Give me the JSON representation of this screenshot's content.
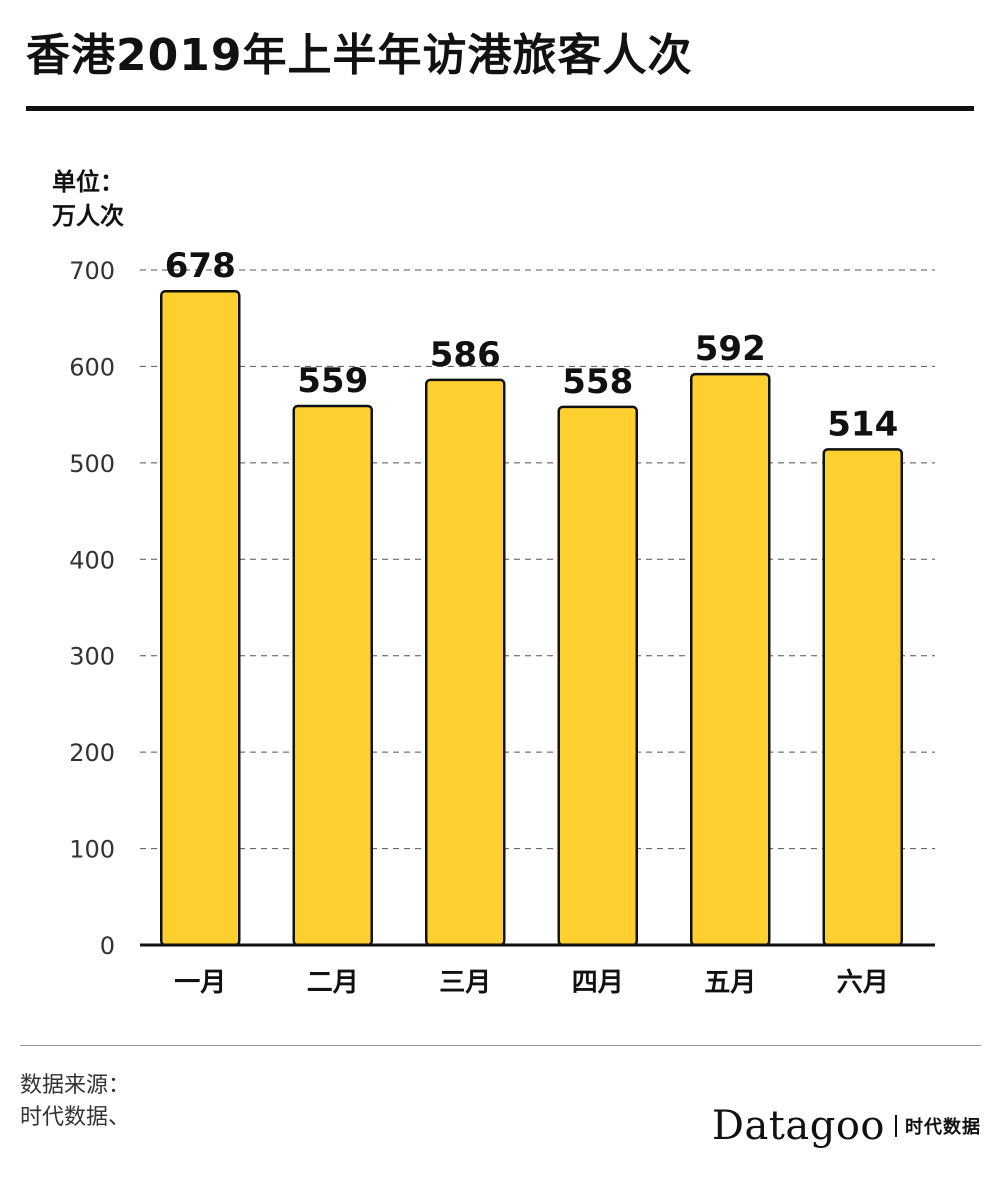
{
  "title": "香港2019年上半年访港旅客人次",
  "unit_line1": "单位：",
  "unit_line2": "万人次",
  "source_line1": "数据来源：",
  "source_line2": "时代数据、",
  "brand_name": "Datagoo",
  "brand_cn": "时代数据",
  "colors": {
    "bar": "#fdd02f",
    "bar_stroke": "#111111",
    "grid": "#555555",
    "axis": "#111111"
  },
  "chart_data": {
    "type": "bar",
    "categories": [
      "一月",
      "二月",
      "三月",
      "四月",
      "五月",
      "六月"
    ],
    "values": [
      678,
      559,
      586,
      558,
      592,
      514
    ],
    "title": "香港2019年上半年访港旅客人次",
    "xlabel": "",
    "ylabel": "单位：万人次",
    "ylim": [
      0,
      700
    ],
    "yticks": [
      0,
      100,
      200,
      300,
      400,
      500,
      600,
      700
    ],
    "grid": true,
    "data_labels": true
  }
}
